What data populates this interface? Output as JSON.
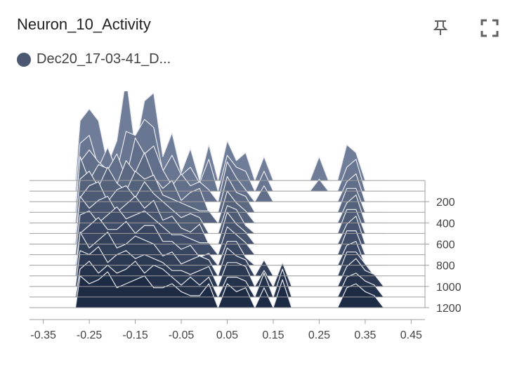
{
  "header": {
    "title": "Neuron_10_Activity",
    "pin_icon": "pin-icon",
    "expand_icon": "fullscreen-icon"
  },
  "legend": {
    "run_label": "Dec20_17-03-41_D...",
    "color": "#4c5872"
  },
  "colors": {
    "front": "#1e2b45",
    "back": "#6f7d98",
    "outline": "#e8eaef",
    "baseline": "#9e9e9e",
    "axis": "#9e9e9e"
  },
  "chart_data": {
    "type": "histogram",
    "mode": "offset",
    "xlim": [
      -0.38,
      0.48
    ],
    "x_ticks": [
      "-0.35",
      "-0.25",
      "-0.15",
      "-0.05",
      "0.05",
      "0.15",
      "0.25",
      "0.35",
      "0.45"
    ],
    "x_tick_values": [
      -0.35,
      -0.25,
      -0.15,
      -0.05,
      0.05,
      0.15,
      0.25,
      0.35,
      0.45
    ],
    "step_ticks": [
      "200",
      "400",
      "600",
      "800",
      "1000",
      "1200"
    ],
    "step_tick_values": [
      200,
      400,
      600,
      800,
      1000,
      1200
    ],
    "step_range": [
      0,
      1300
    ],
    "bin_edges": [
      -0.28,
      -0.26,
      -0.24,
      -0.22,
      -0.2,
      -0.18,
      -0.16,
      -0.14,
      -0.12,
      -0.1,
      -0.08,
      -0.06,
      -0.04,
      -0.02,
      0.0,
      0.02,
      0.04,
      0.06,
      0.08,
      0.1,
      0.12,
      0.14,
      0.16,
      0.18,
      0.2,
      0.22,
      0.24,
      0.26,
      0.28,
      0.3,
      0.32,
      0.34,
      0.36,
      0.38,
      0.4
    ],
    "histograms": [
      {
        "step": 0,
        "counts": [
          1.5,
          1.8,
          1.5,
          0.4,
          1.0,
          2.6,
          0.8,
          2.0,
          2.2,
          0.6,
          1.2,
          0.2,
          0.8,
          0,
          0.9,
          0,
          1.0,
          0.5,
          0.7,
          0,
          0.6,
          0,
          0,
          0,
          0,
          0,
          0.6,
          0,
          0,
          0.9,
          0.7,
          0,
          0,
          0,
          1.3
        ]
      },
      {
        "step": 100,
        "counts": [
          1.2,
          1.4,
          0.6,
          1.1,
          0.5,
          1.5,
          1.4,
          1.8,
          1.6,
          0.5,
          0.9,
          0.4,
          0.6,
          0.2,
          0.8,
          0,
          0.9,
          0.6,
          0.5,
          0,
          0.5,
          0,
          0,
          0,
          0,
          0,
          0.3,
          0,
          0,
          0.6,
          0.8,
          0,
          0,
          0,
          0.6
        ]
      },
      {
        "step": 200,
        "counts": [
          1.0,
          1.3,
          1.0,
          0.8,
          1.2,
          0.6,
          1.6,
          1.2,
          1.4,
          0.8,
          0.4,
          0.7,
          0.4,
          0.5,
          0.3,
          0,
          1.0,
          0.6,
          0.3,
          0,
          0.4,
          0,
          0,
          0,
          0,
          0,
          0,
          0,
          0,
          0.5,
          0.7,
          0,
          0,
          0,
          0
        ]
      },
      {
        "step": 300,
        "counts": [
          1.4,
          0.8,
          1.2,
          1.1,
          0.7,
          1.3,
          1.0,
          1.5,
          0.9,
          0.6,
          0.8,
          0.3,
          0.5,
          0.6,
          0,
          0,
          0.9,
          0.5,
          0.4,
          0,
          0,
          0,
          0,
          0,
          0,
          0,
          0,
          0,
          0,
          0.6,
          0.6,
          0,
          0,
          0,
          0
        ]
      },
      {
        "step": 400,
        "counts": [
          1.1,
          1.3,
          0.9,
          1.4,
          1.0,
          0.8,
          1.3,
          1.1,
          1.2,
          0.7,
          0.6,
          0.5,
          0.4,
          0.3,
          0.3,
          0,
          0.8,
          0.5,
          0.3,
          0,
          0,
          0,
          0,
          0,
          0,
          0,
          0,
          0,
          0,
          0.5,
          0.7,
          0,
          0,
          0,
          0
        ]
      },
      {
        "step": 500,
        "counts": [
          0.9,
          1.2,
          1.3,
          0.8,
          1.1,
          1.2,
          0.9,
          1.3,
          1.0,
          0.8,
          0.6,
          0.4,
          0.5,
          0.4,
          0,
          0,
          0.7,
          0.6,
          0.2,
          0,
          0,
          0,
          0,
          0,
          0,
          0,
          0,
          0,
          0,
          0.6,
          0.6,
          0,
          0,
          0,
          0
        ]
      },
      {
        "step": 600,
        "counts": [
          1.2,
          0.9,
          1.1,
          1.2,
          0.8,
          1.0,
          1.2,
          0.9,
          1.1,
          0.6,
          0.7,
          0.4,
          0.3,
          0.5,
          0,
          0,
          0.8,
          0.5,
          0.3,
          0,
          0,
          0,
          0,
          0,
          0,
          0,
          0,
          0,
          0,
          0.5,
          0.7,
          0,
          0,
          0,
          0
        ]
      },
      {
        "step": 700,
        "counts": [
          1.0,
          1.1,
          0.8,
          1.0,
          1.2,
          0.9,
          1.0,
          1.1,
          0.9,
          0.7,
          0.5,
          0.5,
          0.4,
          0.3,
          0.3,
          0,
          0.7,
          0.5,
          0.3,
          0,
          0,
          0,
          0,
          0,
          0,
          0,
          0,
          0,
          0,
          0.6,
          0.6,
          0,
          0,
          0,
          0
        ]
      },
      {
        "step": 800,
        "counts": [
          0.8,
          1.0,
          1.2,
          0.9,
          0.9,
          1.1,
          0.8,
          1.0,
          1.0,
          0.6,
          0.6,
          0.4,
          0.5,
          0.2,
          0.3,
          0,
          0.6,
          0.6,
          0.2,
          0,
          0,
          0,
          0,
          0,
          0,
          0,
          0,
          0,
          0,
          0.5,
          0.6,
          0,
          0,
          0,
          0
        ]
      },
      {
        "step": 900,
        "counts": [
          1.1,
          0.7,
          0.9,
          1.1,
          0.7,
          0.8,
          1.0,
          0.9,
          0.8,
          0.5,
          0.6,
          0.3,
          0.4,
          0.5,
          0.4,
          0,
          0.7,
          0.5,
          0.4,
          0,
          0.4,
          0,
          0,
          0,
          0,
          0,
          0,
          0,
          0,
          0.6,
          0.6,
          0.3,
          0,
          0,
          0.4
        ]
      },
      {
        "step": 1000,
        "counts": [
          0.9,
          0.8,
          1.0,
          0.6,
          0.8,
          0.9,
          0.7,
          0.8,
          0.7,
          0.6,
          0.4,
          0.4,
          0.3,
          0.4,
          0.5,
          0,
          0.6,
          0.6,
          0.5,
          0,
          0.4,
          0,
          0.6,
          0,
          0,
          0,
          0,
          0,
          0,
          0.5,
          0.7,
          0.4,
          0.3,
          0,
          0.5
        ]
      },
      {
        "step": 1100,
        "counts": [
          0.7,
          0.9,
          0.6,
          0.8,
          0.6,
          0.7,
          0.9,
          0.6,
          0.8,
          0.7,
          0.5,
          0.3,
          0.5,
          0.3,
          0.5,
          0,
          0.5,
          0.5,
          0.4,
          0,
          0.6,
          0,
          0.7,
          0,
          0,
          0,
          0,
          0,
          0,
          0.5,
          0.6,
          0.4,
          0.3,
          0,
          0.6
        ]
      },
      {
        "step": 1200,
        "counts": [
          0.8,
          0.6,
          0.7,
          0.9,
          0.5,
          0.6,
          0.7,
          0.8,
          0.5,
          0.5,
          0.6,
          0.4,
          0.3,
          0.3,
          0.6,
          0,
          0.6,
          0.4,
          0.5,
          0,
          0.5,
          0,
          0.7,
          0,
          0,
          0,
          0,
          0,
          0,
          0.5,
          0.6,
          0.4,
          0.3,
          0,
          0.5
        ]
      }
    ]
  }
}
